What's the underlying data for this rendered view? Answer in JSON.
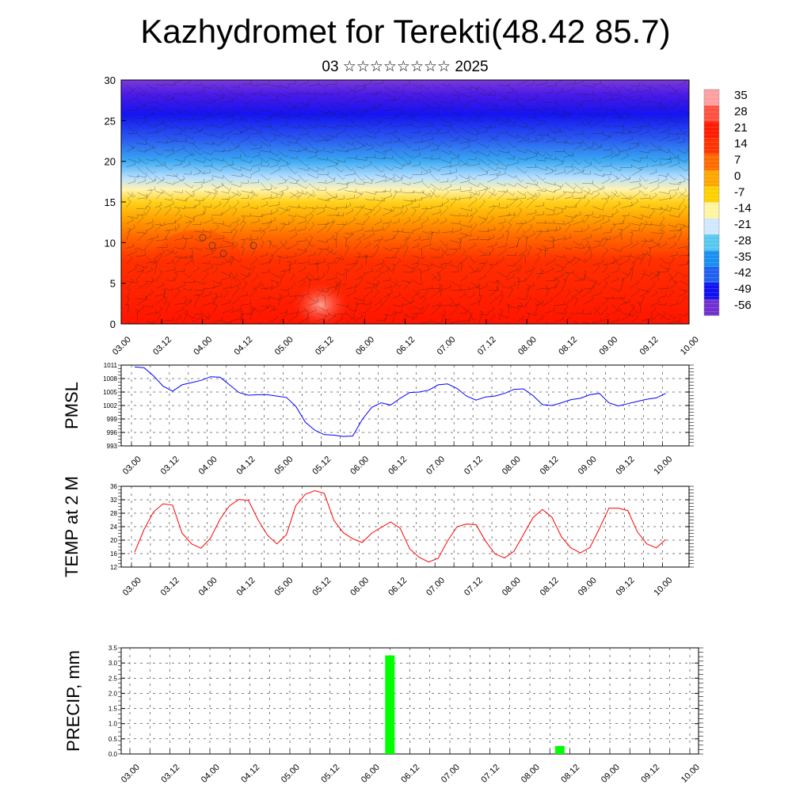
{
  "title": "Kazhydromet for Terekti(48.42 85.7)",
  "subtitle": "03 ☆☆☆☆☆☆☆☆ 2025",
  "time_ticks": [
    "03.00",
    "03.12",
    "04.00",
    "04.12",
    "05.00",
    "05.12",
    "06.00",
    "06.12",
    "07.00",
    "07.12",
    "08.00",
    "08.12",
    "09.00",
    "09.12",
    "10.00"
  ],
  "chart_data": [
    {
      "type": "heatmap",
      "ylim": [
        0,
        30
      ],
      "y_ticks": [
        "0",
        "5",
        "10",
        "15",
        "20",
        "25",
        "30"
      ],
      "colorbar_labels": [
        "35",
        "28",
        "21",
        "14",
        "7",
        "0",
        "-7",
        "-14",
        "-21",
        "-28",
        "-35",
        "-42",
        "-49",
        "-56"
      ],
      "colorbar_colors": [
        "#ff9f9f",
        "#ff5040",
        "#ff1a00",
        "#ff3300",
        "#ff6a00",
        "#ffa500",
        "#ffd000",
        "#fff5a0",
        "#cfe8ff",
        "#57c8f0",
        "#1a8ff0",
        "#2060f0",
        "#1010f0",
        "#7030d0"
      ],
      "vertical_profile": [
        {
          "y": 0,
          "value": 30
        },
        {
          "y": 8,
          "value": 20
        },
        {
          "y": 12,
          "value": 5
        },
        {
          "y": 15,
          "value": -8
        },
        {
          "y": 17,
          "value": -14
        },
        {
          "y": 20,
          "value": -30
        },
        {
          "y": 23,
          "value": -45
        },
        {
          "y": 27,
          "value": -52
        },
        {
          "y": 30,
          "value": -58
        }
      ],
      "has_wind_barbs": true
    },
    {
      "type": "line",
      "ylabel": "PMSL",
      "ylim": [
        993,
        1011
      ],
      "y_ticks": [
        "993",
        "996",
        "999",
        "1002",
        "1005",
        "1008",
        "1011"
      ],
      "color": "#0000ff",
      "values": [
        1010.6,
        1010.4,
        1008.6,
        1006.3,
        1005.2,
        1006.6,
        1007.1,
        1007.6,
        1008.4,
        1008.3,
        1006.6,
        1004.9,
        1004.3,
        1004.4,
        1004.4,
        1004.1,
        1003.8,
        1001.8,
        998.3,
        996.5,
        995.5,
        995.4,
        995.1,
        995.2,
        998.9,
        1001.6,
        1002.6,
        1002.1,
        1003.6,
        1004.9,
        1005.0,
        1005.4,
        1006.6,
        1006.8,
        1005.8,
        1004.1,
        1003.2,
        1003.9,
        1004.1,
        1004.7,
        1005.6,
        1005.7,
        1004.2,
        1002.2,
        1002.0,
        1002.6,
        1003.3,
        1003.6,
        1004.4,
        1004.7,
        1002.6,
        1001.9,
        1002.4,
        1002.9,
        1003.4,
        1003.7,
        1004.7
      ]
    },
    {
      "type": "line",
      "ylabel": "TEMP at 2 M",
      "ylim": [
        12,
        36
      ],
      "y_ticks": [
        "12",
        "16",
        "20",
        "24",
        "28",
        "32",
        "36"
      ],
      "color": "#ff0000",
      "values": [
        16.4,
        23.2,
        28.4,
        30.8,
        30.4,
        22.1,
        18.9,
        17.6,
        20.6,
        26.2,
        30.2,
        32.1,
        31.8,
        26.1,
        21.5,
        18.9,
        21.6,
        30.3,
        33.6,
        34.7,
        33.9,
        25.9,
        22.2,
        20.4,
        19.3,
        22.1,
        23.8,
        25.4,
        23.5,
        17.4,
        14.9,
        13.5,
        14.6,
        19.8,
        24.0,
        24.8,
        24.6,
        19.7,
        15.9,
        14.7,
        16.7,
        21.7,
        26.7,
        29.1,
        26.8,
        21.0,
        17.7,
        16.2,
        17.8,
        23.4,
        29.5,
        29.5,
        28.8,
        22.5,
        18.9,
        17.7,
        20.2
      ]
    },
    {
      "type": "bar",
      "ylabel": "PRECIP, mm",
      "ylim": [
        0,
        3.5
      ],
      "y_ticks": [
        "0.0",
        "0.5",
        "1.0",
        "1.5",
        "2.0",
        "2.5",
        "3.0",
        "3.5"
      ],
      "color": "#00ff00",
      "bars": [
        {
          "time": "06.06",
          "value": 3.25
        },
        {
          "time": "08.09",
          "value": 0.26
        }
      ]
    }
  ]
}
